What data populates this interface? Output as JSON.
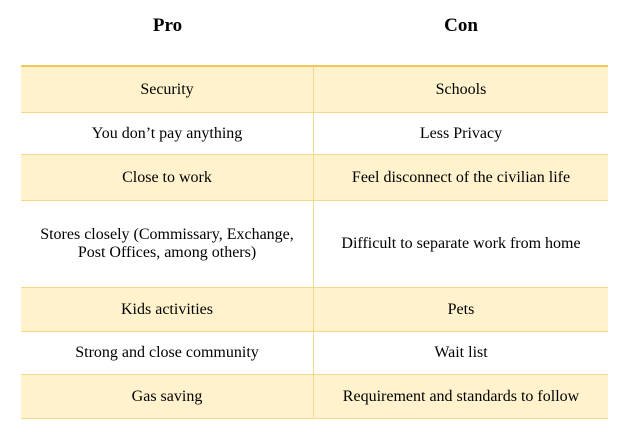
{
  "table": {
    "headers": {
      "pro": "Pro",
      "con": "Con"
    },
    "rows": [
      {
        "pro": "Security",
        "con": "Schools"
      },
      {
        "pro": "You don’t pay anything",
        "con": "Less Privacy"
      },
      {
        "pro": "Close to work",
        "con": "Feel disconnect of the civilian life"
      },
      {
        "pro": "Stores closely (Commissary, Exchange, Post Offices, among others)",
        "con": "Difficult to separate work from home"
      },
      {
        "pro": "Kids activities",
        "con": "Pets"
      },
      {
        "pro": "Strong and close community",
        "con": "Wait list"
      },
      {
        "pro": "Gas saving",
        "con": "Requirement and standards to follow"
      }
    ]
  },
  "colors": {
    "shaded_row": "#fff2cc",
    "border": "#f5d98f",
    "header_border": "#f2c75a"
  }
}
